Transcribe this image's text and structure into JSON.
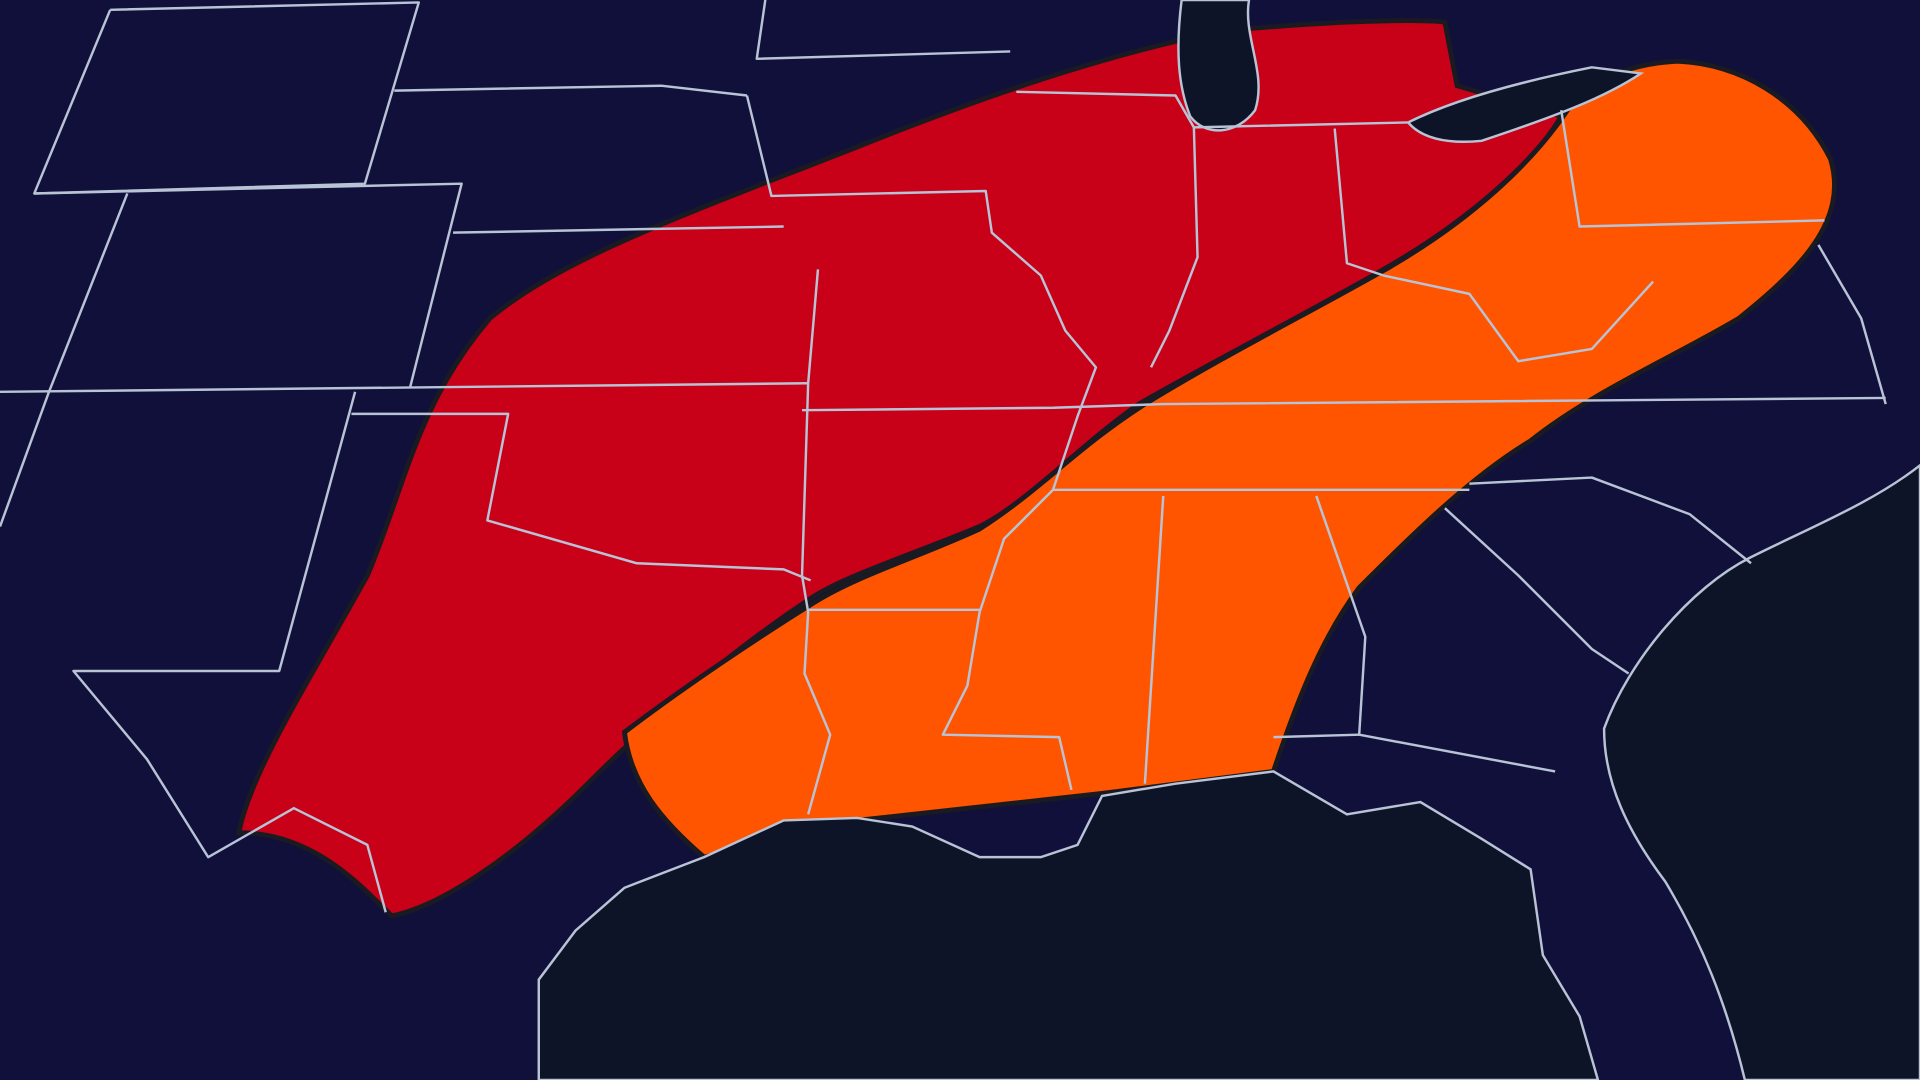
{
  "map": {
    "colors": {
      "land": "#10103a",
      "water": "#0e1428",
      "borders": "#b9c3d6",
      "risk_high": "#c80018",
      "risk_moderate": "#ff5500",
      "outline": "#1a1a22"
    },
    "risk_areas": [
      {
        "level": "high",
        "color": "#c80018"
      },
      {
        "level": "moderate",
        "color": "#ff5500"
      }
    ]
  }
}
